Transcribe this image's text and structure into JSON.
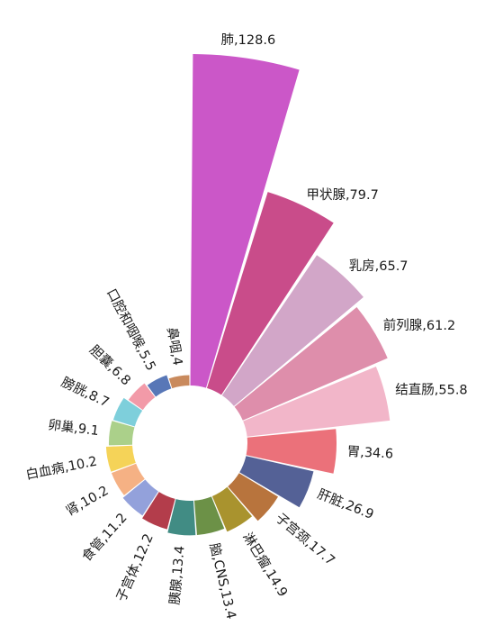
{
  "chart_data": {
    "type": "polar-bar",
    "title": "",
    "value_separator": ",",
    "categories": [
      "肺",
      "甲状腺",
      "乳房",
      "前列腺",
      "结直肠",
      "胃",
      "肝脏",
      "子宫颈",
      "淋巴瘤",
      "脑,CNS",
      "胰腺",
      "子宫体",
      "食管",
      "肾",
      "白血病",
      "卵巢",
      "膀胱",
      "胆囊",
      "口腔和咽喉",
      "鼻咽"
    ],
    "values": [
      128.6,
      79.7,
      65.7,
      61.2,
      55.8,
      34.6,
      26.9,
      17.7,
      14.9,
      13.4,
      13.4,
      12.2,
      11.2,
      10.2,
      10.2,
      9.1,
      8.7,
      6.8,
      5.5,
      4
    ],
    "value_labels": [
      "128.6",
      "79.7",
      "65.7",
      "61.2",
      "55.8",
      "34.6",
      "26.9",
      "17.7",
      "14.9",
      "13.4",
      "13.4",
      "12.2",
      "11.2",
      "10.2",
      "10.2",
      "9.1",
      "8.7",
      "6.8",
      "5.5",
      "4"
    ],
    "colors": [
      "#CB57C8",
      "#C94C8A",
      "#D2A6C8",
      "#DE8EAB",
      "#F2B6C9",
      "#EB717A",
      "#546196",
      "#B8743D",
      "#A9932E",
      "#6C9147",
      "#418C84",
      "#B33D4B",
      "#93A1DB",
      "#F5B184",
      "#F5D358",
      "#ABD08A",
      "#7ECFDB",
      "#F29AA8",
      "#5877B7",
      "#C98A5D"
    ]
  }
}
